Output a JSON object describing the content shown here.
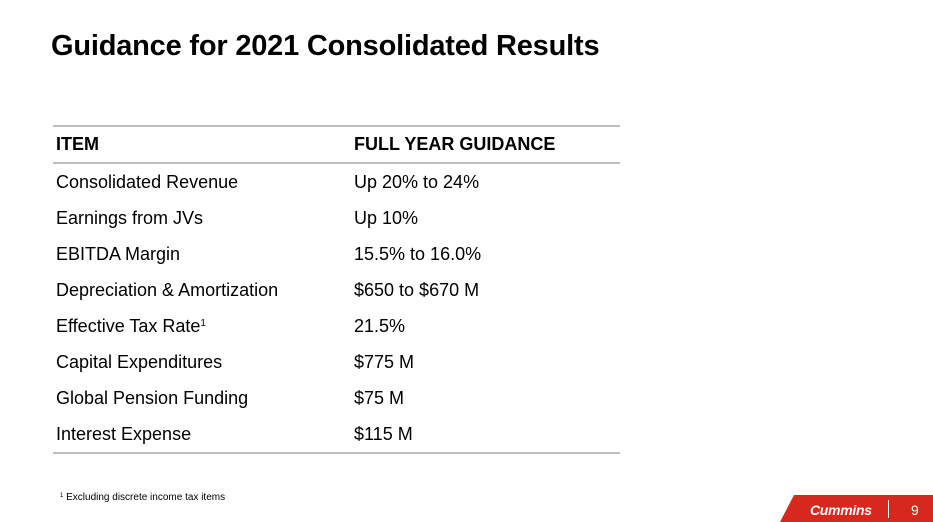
{
  "title": "Guidance for 2021 Consolidated Results",
  "table": {
    "headers": {
      "item": "ITEM",
      "guidance": "FULL YEAR GUIDANCE"
    },
    "rows": [
      {
        "item": "Consolidated Revenue",
        "guidance": "Up 20% to 24%"
      },
      {
        "item": "Earnings from JVs",
        "guidance": "Up 10%"
      },
      {
        "item": "EBITDA Margin",
        "guidance": "15.5% to 16.0%"
      },
      {
        "item": "Depreciation & Amortization",
        "guidance": "$650 to $670 M"
      },
      {
        "item": "Effective Tax Rate",
        "footnote_marker": "1",
        "guidance": "21.5%"
      },
      {
        "item": "Capital Expenditures",
        "guidance": "$775 M"
      },
      {
        "item": "Global Pension Funding",
        "guidance": "$75 M"
      },
      {
        "item": "Interest Expense",
        "guidance": "$115 M"
      }
    ]
  },
  "footnote": {
    "marker": "1",
    "text": "Excluding discrete income tax items"
  },
  "footer": {
    "brand": "Cummins",
    "page_number": "9",
    "brand_color": "#d7281d"
  }
}
